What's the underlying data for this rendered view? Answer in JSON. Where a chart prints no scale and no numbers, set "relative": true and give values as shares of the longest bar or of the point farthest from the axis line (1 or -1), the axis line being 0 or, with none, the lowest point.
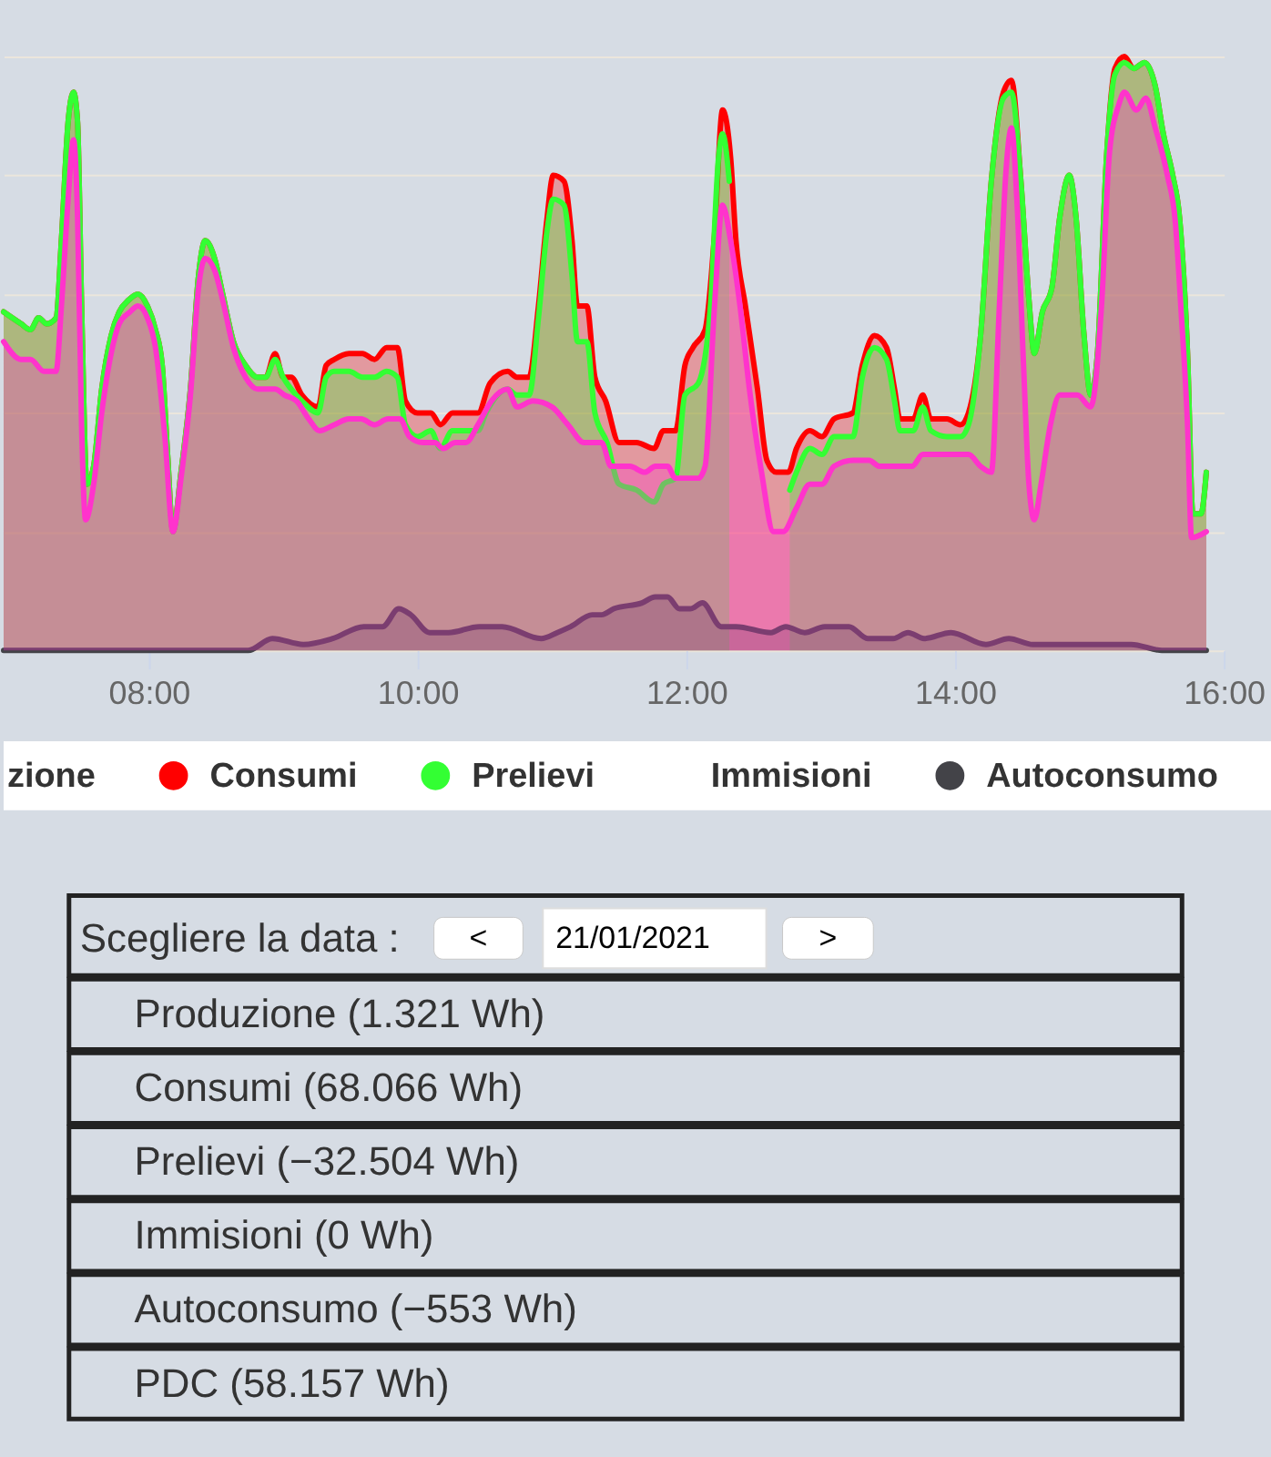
{
  "chart_data": [
    {
      "type": "area",
      "relative": true,
      "xlim": [
        6.92,
        16
      ],
      "xticks": [
        {
          "value": 8,
          "label": "08:00"
        },
        {
          "value": 10,
          "label": "10:00"
        },
        {
          "value": 12,
          "label": "12:00"
        },
        {
          "value": 14,
          "label": "14:00"
        },
        {
          "value": 16,
          "label": "16:00"
        }
      ],
      "grid": "y",
      "legend": "bottom",
      "series": [
        {
          "name": "zione"
        },
        {
          "name": "Consumi",
          "color": "#ff0000",
          "x": [
            6.92,
            7.05,
            7.12,
            7.18,
            7.24,
            7.31,
            7.35,
            7.4,
            7.44,
            7.47,
            7.5,
            7.54,
            7.59,
            7.65,
            7.72,
            7.78,
            7.85,
            7.92,
            7.99,
            8.05,
            8.1,
            8.14,
            8.18,
            8.24,
            8.31,
            8.37,
            8.42,
            8.49,
            8.55,
            8.63,
            8.72,
            8.81,
            8.87,
            8.94,
            9.0,
            9.06,
            9.14,
            9.26,
            9.32,
            9.38,
            9.49,
            9.59,
            9.68,
            9.77,
            9.85,
            9.91,
            10.0,
            10.1,
            10.17,
            10.26,
            10.35,
            10.45,
            10.54,
            10.67,
            10.74,
            10.83,
            10.9,
            10.96,
            11.01,
            11.09,
            11.15,
            11.19,
            11.26,
            11.32,
            11.4,
            11.5,
            11.63,
            11.76,
            11.83,
            11.92,
            11.99,
            12.05,
            12.14,
            12.21,
            12.27,
            12.33,
            12.37,
            12.44,
            12.53,
            12.6,
            12.67,
            12.76,
            12.82,
            12.92,
            13.01,
            13.1,
            13.24,
            13.31,
            13.4,
            13.49,
            13.55,
            13.59,
            13.69,
            13.76,
            13.82,
            13.94,
            14.04,
            14.1,
            14.19,
            14.27,
            14.36,
            14.42,
            14.49,
            14.55,
            14.59,
            14.65,
            14.72,
            14.78,
            14.85,
            14.9,
            14.96,
            15.01,
            15.06,
            15.13,
            15.19,
            15.26,
            15.33,
            15.41,
            15.49,
            15.55,
            15.62,
            15.67,
            15.73,
            15.77,
            15.83,
            15.87
          ],
          "values": [
            0.57,
            0.55,
            0.54,
            0.56,
            0.55,
            0.56,
            0.69,
            0.89,
            0.94,
            0.89,
            0.58,
            0.28,
            0.31,
            0.44,
            0.53,
            0.57,
            0.59,
            0.6,
            0.58,
            0.54,
            0.48,
            0.33,
            0.2,
            0.3,
            0.44,
            0.63,
            0.69,
            0.66,
            0.6,
            0.52,
            0.48,
            0.46,
            0.46,
            0.5,
            0.46,
            0.46,
            0.43,
            0.41,
            0.48,
            0.49,
            0.5,
            0.5,
            0.49,
            0.51,
            0.51,
            0.42,
            0.4,
            0.4,
            0.38,
            0.4,
            0.4,
            0.4,
            0.45,
            0.47,
            0.46,
            0.46,
            0.58,
            0.72,
            0.8,
            0.79,
            0.69,
            0.58,
            0.58,
            0.46,
            0.42,
            0.35,
            0.35,
            0.34,
            0.37,
            0.37,
            0.48,
            0.51,
            0.54,
            0.7,
            0.91,
            0.83,
            0.69,
            0.58,
            0.44,
            0.32,
            0.3,
            0.3,
            0.34,
            0.37,
            0.36,
            0.39,
            0.4,
            0.48,
            0.53,
            0.51,
            0.44,
            0.39,
            0.39,
            0.43,
            0.39,
            0.39,
            0.38,
            0.4,
            0.53,
            0.79,
            0.94,
            0.96,
            0.79,
            0.59,
            0.5,
            0.57,
            0.61,
            0.73,
            0.8,
            0.73,
            0.53,
            0.43,
            0.5,
            0.84,
            0.98,
            1,
            0.98,
            0.99,
            0.95,
            0.87,
            0.8,
            0.73,
            0.5,
            0.23,
            0.23,
            0.3
          ]
        },
        {
          "name": "Prelievi",
          "color": "#33ff33",
          "x": [
            6.92,
            7.05,
            7.12,
            7.18,
            7.24,
            7.31,
            7.35,
            7.4,
            7.44,
            7.47,
            7.5,
            7.54,
            7.59,
            7.65,
            7.72,
            7.78,
            7.85,
            7.92,
            7.99,
            8.05,
            8.1,
            8.14,
            8.18,
            8.24,
            8.31,
            8.37,
            8.42,
            8.49,
            8.55,
            8.63,
            8.72,
            8.81,
            8.87,
            8.94,
            9.0,
            9.06,
            9.14,
            9.26,
            9.32,
            9.38,
            9.49,
            9.59,
            9.68,
            9.77,
            9.85,
            9.91,
            10.0,
            10.1,
            10.17,
            10.26,
            10.35,
            10.45,
            10.51,
            10.67,
            10.74,
            10.83,
            10.9,
            10.96,
            11.01,
            11.09,
            11.15,
            11.19,
            11.26,
            11.32,
            11.41,
            11.5,
            11.63,
            11.76,
            11.83,
            11.92,
            11.99,
            12.09,
            12.18,
            12.24,
            12.27,
            12.32,
            12.56,
            12.77,
            12.82,
            12.92,
            13.01,
            13.1,
            13.24,
            13.31,
            13.4,
            13.49,
            13.55,
            13.59,
            13.69,
            13.76,
            13.82,
            13.94,
            14.04,
            14.1,
            14.19,
            14.27,
            14.36,
            14.42,
            14.49,
            14.55,
            14.59,
            14.65,
            14.72,
            14.78,
            14.85,
            14.9,
            14.96,
            15.01,
            15.06,
            15.13,
            15.19,
            15.26,
            15.33,
            15.41,
            15.49,
            15.55,
            15.62,
            15.67,
            15.73,
            15.77,
            15.83,
            15.87
          ],
          "values": [
            0.57,
            0.55,
            0.54,
            0.56,
            0.55,
            0.56,
            0.69,
            0.89,
            0.94,
            0.89,
            0.58,
            0.28,
            0.31,
            0.44,
            0.53,
            0.57,
            0.59,
            0.6,
            0.58,
            0.54,
            0.48,
            0.33,
            0.2,
            0.3,
            0.44,
            0.63,
            0.69,
            0.66,
            0.6,
            0.52,
            0.48,
            0.46,
            0.46,
            0.49,
            0.46,
            0.44,
            0.42,
            0.4,
            0.46,
            0.47,
            0.47,
            0.46,
            0.46,
            0.47,
            0.46,
            0.38,
            0.36,
            0.37,
            0.34,
            0.37,
            0.37,
            0.37,
            0.4,
            0.44,
            0.43,
            0.43,
            0.56,
            0.7,
            0.76,
            0.75,
            0.63,
            0.52,
            0.52,
            0.4,
            0.35,
            0.28,
            0.27,
            0.25,
            0.28,
            0.29,
            0.43,
            0.45,
            0.58,
            0.83,
            0.87,
            0.79,
            null,
            0.27,
            0.3,
            0.34,
            0.33,
            0.36,
            0.36,
            0.46,
            0.51,
            0.49,
            0.42,
            0.37,
            0.37,
            0.41,
            0.37,
            0.36,
            0.36,
            0.38,
            0.53,
            0.79,
            0.93,
            0.94,
            0.79,
            0.59,
            0.5,
            0.57,
            0.61,
            0.73,
            0.8,
            0.73,
            0.53,
            0.43,
            0.5,
            0.84,
            0.97,
            0.99,
            0.98,
            0.99,
            0.95,
            0.87,
            0.8,
            0.73,
            0.5,
            0.23,
            0.23,
            0.3
          ]
        },
        {
          "name": "Immisioni"
        },
        {
          "name": "Autoconsumo",
          "color": "#434348",
          "x": [
            6.92,
            8.74,
            8.92,
            9.15,
            9.37,
            9.6,
            9.74,
            9.86,
            9.95,
            10.09,
            10.23,
            10.46,
            10.63,
            10.92,
            11.04,
            11.14,
            11.3,
            11.37,
            11.46,
            11.67,
            11.77,
            11.86,
            11.95,
            12.03,
            12.12,
            12.26,
            12.37,
            12.63,
            12.74,
            12.88,
            13.03,
            13.21,
            13.35,
            13.54,
            13.65,
            13.77,
            13.97,
            14.23,
            14.4,
            14.58,
            14.8,
            14.97,
            15.31,
            15.54,
            15.87
          ],
          "values": [
            0,
            0,
            0.02,
            0.01,
            0.02,
            0.04,
            0.04,
            0.07,
            0.06,
            0.03,
            0.03,
            0.04,
            0.04,
            0.02,
            0.03,
            0.04,
            0.06,
            0.06,
            0.07,
            0.08,
            0.09,
            0.09,
            0.07,
            0.07,
            0.08,
            0.04,
            0.04,
            0.03,
            0.04,
            0.03,
            0.04,
            0.04,
            0.02,
            0.02,
            0.03,
            0.02,
            0.03,
            0.01,
            0.02,
            0.01,
            0.01,
            0.01,
            0.01,
            0,
            0
          ]
        },
        {
          "color": "#ff33cc",
          "x": [
            6.92,
            7.05,
            7.12,
            7.22,
            7.31,
            7.35,
            7.4,
            7.44,
            7.47,
            7.5,
            7.53,
            7.59,
            7.65,
            7.72,
            7.78,
            7.86,
            7.92,
            7.99,
            8.05,
            8.12,
            8.18,
            8.24,
            8.31,
            8.37,
            8.42,
            8.49,
            8.55,
            8.63,
            8.72,
            8.81,
            8.94,
            9.01,
            9.1,
            9.19,
            9.27,
            9.38,
            9.49,
            9.58,
            9.68,
            9.78,
            9.87,
            9.94,
            10.04,
            10.13,
            10.19,
            10.28,
            10.36,
            10.45,
            10.55,
            10.67,
            10.74,
            10.86,
            11.0,
            11.12,
            11.24,
            11.37,
            11.44,
            11.58,
            11.69,
            11.77,
            11.86,
            11.92,
            12.09,
            12.14,
            12.21,
            12.27,
            12.33,
            12.4,
            12.47,
            12.56,
            12.65,
            12.72,
            12.82,
            12.92,
            13.01,
            13.1,
            13.24,
            13.36,
            13.44,
            13.56,
            13.68,
            13.76,
            13.94,
            14.01,
            14.1,
            14.19,
            14.27,
            14.33,
            14.38,
            14.42,
            14.46,
            14.51,
            14.55,
            14.59,
            14.64,
            14.71,
            14.78,
            14.91,
            15.01,
            15.09,
            15.15,
            15.22,
            15.26,
            15.35,
            15.42,
            15.49,
            15.58,
            15.64,
            15.68,
            15.73,
            15.76,
            15.87
          ],
          "values": [
            0.52,
            0.49,
            0.49,
            0.47,
            0.47,
            0.58,
            0.76,
            0.86,
            0.73,
            0.38,
            0.22,
            0.28,
            0.4,
            0.5,
            0.55,
            0.57,
            0.58,
            0.56,
            0.51,
            0.36,
            0.2,
            0.29,
            0.43,
            0.61,
            0.66,
            0.64,
            0.59,
            0.51,
            0.46,
            0.44,
            0.44,
            0.43,
            0.42,
            0.39,
            0.37,
            0.38,
            0.39,
            0.39,
            0.38,
            0.39,
            0.39,
            0.36,
            0.35,
            0.35,
            0.34,
            0.35,
            0.35,
            0.38,
            0.42,
            0.44,
            0.41,
            0.42,
            0.41,
            0.38,
            0.35,
            0.35,
            0.31,
            0.31,
            0.3,
            0.31,
            0.31,
            0.29,
            0.29,
            0.31,
            0.58,
            0.75,
            0.69,
            0.58,
            0.44,
            0.3,
            0.2,
            0.2,
            0.24,
            0.28,
            0.28,
            0.31,
            0.32,
            0.32,
            0.31,
            0.31,
            0.31,
            0.33,
            0.33,
            0.33,
            0.33,
            0.31,
            0.3,
            0.58,
            0.81,
            0.88,
            0.76,
            0.48,
            0.28,
            0.22,
            0.28,
            0.38,
            0.43,
            0.43,
            0.41,
            0.58,
            0.84,
            0.92,
            0.94,
            0.91,
            0.93,
            0.88,
            0.8,
            0.72,
            0.58,
            0.38,
            0.19,
            0.2
          ]
        }
      ]
    },
    {
      "type": "other",
      "annotations": [
        "Scegliere la data :",
        "<",
        "21/01/2021",
        ">",
        "Produzione (1.321 Wh)",
        "Consumi (68.066 Wh)",
        "Prelievi (−32.504 Wh)",
        "Immisioni (0 Wh)",
        "Autoconsumo (−553 Wh)",
        "PDC (58.157 Wh)"
      ]
    }
  ]
}
